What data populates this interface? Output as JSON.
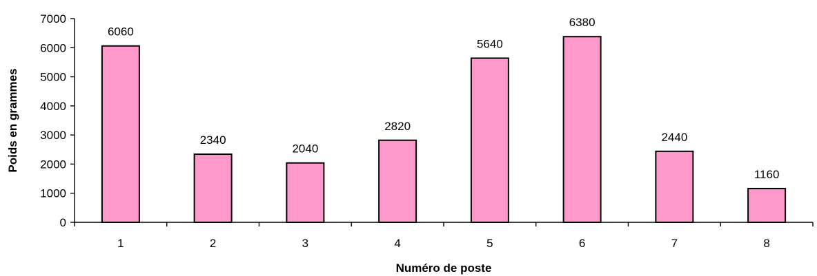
{
  "chart_data": {
    "type": "bar",
    "categories": [
      "1",
      "2",
      "3",
      "4",
      "5",
      "6",
      "7",
      "8"
    ],
    "values": [
      6060,
      2340,
      2040,
      2820,
      5640,
      6380,
      2440,
      1160
    ],
    "data_labels": [
      "6060",
      "2340",
      "2040",
      "2820",
      "5640",
      "6380",
      "2440",
      "1160"
    ],
    "title": "",
    "xlabel": "Numéro de poste",
    "ylabel": "Poids en grammes",
    "ylim": [
      0,
      7000
    ],
    "y_ticks": [
      "0",
      "1000",
      "2000",
      "3000",
      "4000",
      "5000",
      "6000",
      "7000"
    ],
    "grid": false,
    "legend": "none",
    "colors": {
      "bar_fill": "#ff99cc",
      "bar_stroke": "#000000",
      "axis": "#000000",
      "text": "#000000"
    }
  }
}
